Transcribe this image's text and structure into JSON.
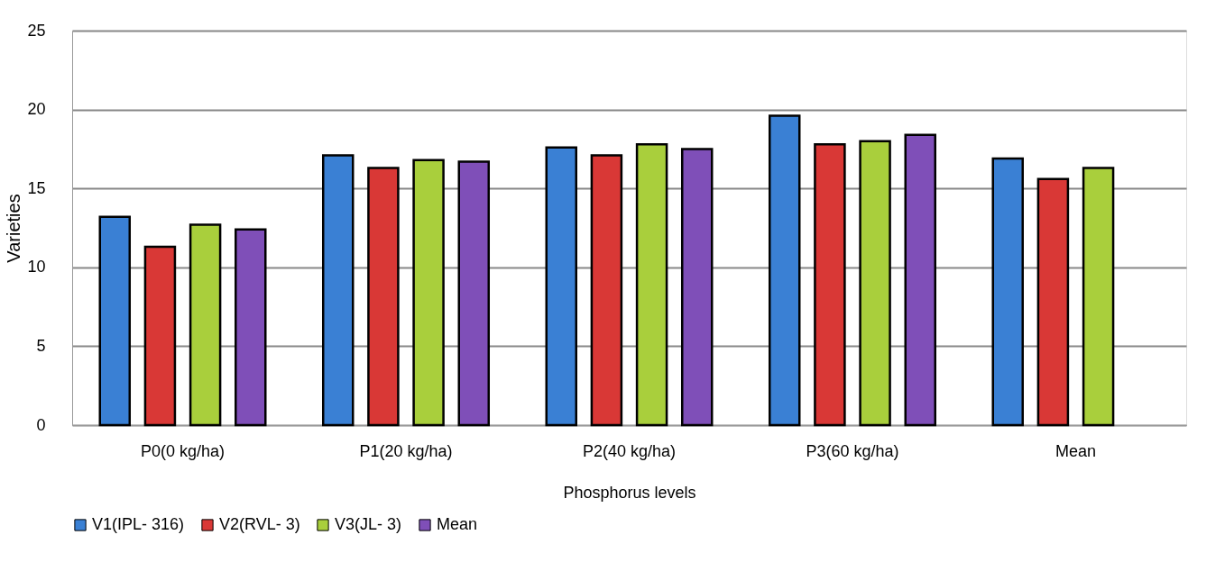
{
  "chart_data": {
    "type": "bar",
    "xlabel": "Phosphorus levels",
    "ylabel": "Varieties",
    "categories": [
      "P0(0 kg/ha)",
      "P1(20 kg/ha)",
      "P2(40 kg/ha)",
      "P3(60 kg/ha)",
      "Mean"
    ],
    "series": [
      {
        "name": "V1(IPL- 316)",
        "color": "#3a80d4",
        "values": [
          13.2,
          17.1,
          17.6,
          19.6,
          16.9
        ]
      },
      {
        "name": "V2(RVL- 3)",
        "color": "#d93836",
        "values": [
          11.3,
          16.3,
          17.1,
          17.8,
          15.6
        ]
      },
      {
        "name": "V3(JL- 3)",
        "color": "#a9cf3c",
        "values": [
          12.7,
          16.8,
          17.8,
          18.0,
          16.3
        ]
      },
      {
        "name": "Mean",
        "color": "#7f4fb8",
        "values": [
          12.4,
          16.7,
          17.5,
          18.4,
          null
        ]
      }
    ],
    "ylim": [
      0,
      25
    ],
    "yticks": [
      0,
      5,
      10,
      15,
      20,
      25
    ],
    "grid": "y",
    "legend": "bottom"
  }
}
